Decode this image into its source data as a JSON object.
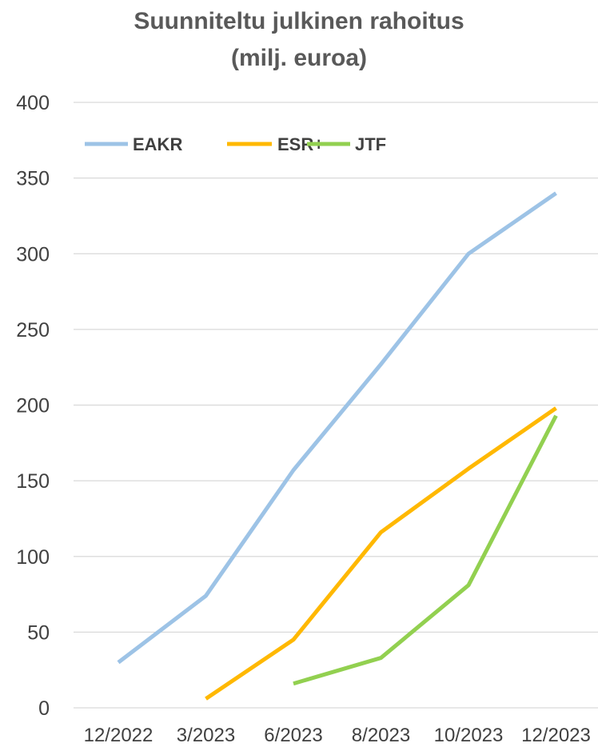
{
  "chart_data": {
    "type": "line",
    "title": "Suunniteltu julkinen rahoitus",
    "subtitle": "(milj. euroa)",
    "categories": [
      "12/2022",
      "3/2023",
      "6/2023",
      "8/2023",
      "10/2023",
      "12/2023"
    ],
    "ylim": [
      0,
      400
    ],
    "yticks": [
      "0",
      "50",
      "100",
      "150",
      "200",
      "250",
      "300",
      "350",
      "400"
    ],
    "grid": true,
    "legend_position": "top-left",
    "series": [
      {
        "name": "EAKR",
        "color": "#9DC3E6",
        "values": [
          30,
          74,
          157,
          227,
          300,
          340
        ]
      },
      {
        "name": "ESR+",
        "color": "#FFB800",
        "values": [
          null,
          6,
          45,
          116,
          158,
          198
        ]
      },
      {
        "name": "JTF",
        "color": "#92D050",
        "values": [
          null,
          null,
          16,
          33,
          81,
          193
        ]
      }
    ]
  }
}
